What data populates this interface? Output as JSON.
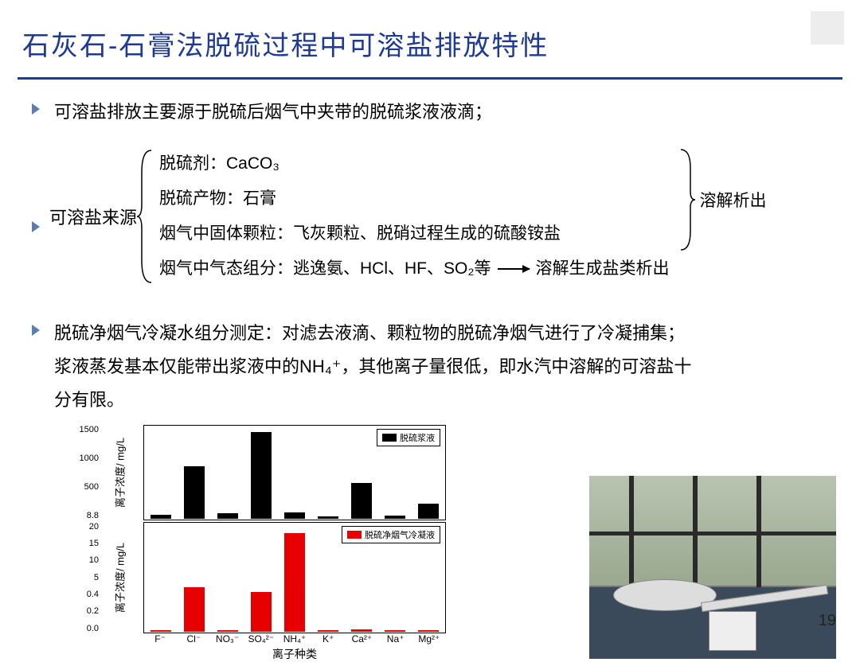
{
  "title": "石灰石-石膏法脱硫过程中可溶盐排放特性",
  "bullets": {
    "b1": "可溶盐排放主要源于脱硫后烟气中夹带的脱硫浆液液滴；",
    "b2_label": "可溶盐来源",
    "b3_a": "脱硫净烟气冷凝水组分测定：对滤去液滴、颗粒物的脱硫净烟气进行了冷凝捕集；",
    "b3_b": "浆液蒸发基本仅能带出浆液中的NH₄⁺，其他离子量很低，即水汽中溶解的可溶盐十",
    "b3_c": "分有限。"
  },
  "sources": {
    "l1": "脱硫剂：CaCO₃",
    "l2": "脱硫产物：石膏",
    "l3": "烟气中固体颗粒：飞灰颗粒、脱硝过程生成的硫酸铵盐",
    "l4": "烟气中气态组分：逃逸氨、HCl、HF、SO₂等",
    "right_top": "溶解析出",
    "right_bot": "溶解生成盐类析出"
  },
  "chart_top": {
    "legend": "脱硫浆液",
    "ylabel": "离子浓度/ mg/L",
    "ylim": [
      0,
      1600
    ],
    "yticks": [
      "1500",
      "1000",
      "500",
      "8.8"
    ],
    "bar_color": "#000000",
    "categories": [
      "F⁻",
      "Cl⁻",
      "NO₃⁻",
      "SO₄²⁻",
      "NH₄⁺",
      "K⁺",
      "Ca²⁺",
      "Na⁺",
      "Mg²⁺"
    ],
    "values": [
      70,
      900,
      90,
      1500,
      110,
      30,
      620,
      50,
      260
    ]
  },
  "chart_bot": {
    "legend": "脱硫净烟气冷凝液",
    "ylabel": "离子浓度/ mg/L",
    "ylim": [
      0,
      22
    ],
    "yticks": [
      "20",
      "15",
      "10",
      "5",
      "0.4",
      "0.2",
      "0.0"
    ],
    "bar_color": "#e60000",
    "categories": [
      "F⁻",
      "Cl⁻",
      "NO₃⁻",
      "SO₄²⁻",
      "NH₄⁺",
      "K⁺",
      "Ca²⁺",
      "Na⁺",
      "Mg²⁺"
    ],
    "values": [
      0.3,
      9,
      0.3,
      8,
      20,
      0.2,
      0.4,
      0.2,
      0.2
    ]
  },
  "xlabel": "离子种类",
  "page_number": "19",
  "colors": {
    "title": "#1f3a93",
    "rule": "#1f3a93",
    "bullet": "#5b7db1"
  }
}
